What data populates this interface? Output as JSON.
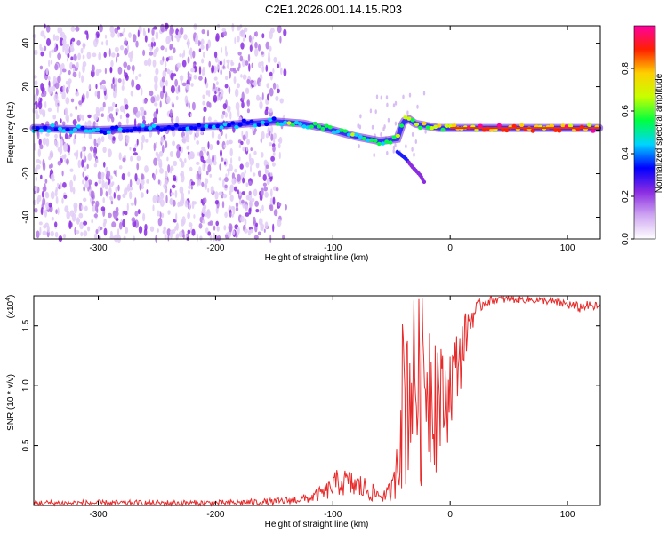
{
  "title": "C2E1.2026.001.14.15.R03",
  "chart_data": [
    {
      "type": "heatmap",
      "title": "C2E1.2026.001.14.15.R03",
      "xlabel": "Height of straight line (km)",
      "ylabel": "Frequency (Hz)",
      "xlim": [
        -355,
        128
      ],
      "ylim": [
        -50,
        48
      ],
      "xticks": [
        -300,
        -200,
        -100,
        0,
        100
      ],
      "yticks": [
        -40,
        -20,
        0,
        20,
        40
      ],
      "colorbar": {
        "label": "Normalized spectral amplitude",
        "range": [
          0,
          1
        ],
        "ticks": [
          0.0,
          0.2,
          0.4,
          0.6,
          0.8
        ],
        "colors": [
          "#ffffff",
          "#cfa6f2",
          "#8a2be2",
          "#0000ff",
          "#00d5ff",
          "#00ff40",
          "#c8ff00",
          "#ffd000",
          "#ff2000",
          "#ff00a0"
        ]
      },
      "ridge": {
        "x": [
          -355,
          -300,
          -250,
          -200,
          -150,
          -125,
          -100,
          -80,
          -60,
          -45,
          -40,
          -35,
          -30,
          -20,
          -10,
          0,
          50,
          100,
          128
        ],
        "freq_hz": [
          1,
          0,
          1,
          2,
          4,
          3,
          0,
          -3,
          -5,
          -4,
          4,
          5,
          3,
          2,
          1,
          1,
          1,
          1,
          1
        ]
      },
      "branch": {
        "x": [
          -45,
          -38,
          -32,
          -25,
          -22
        ],
        "freq_hz": [
          -10,
          -13,
          -17,
          -21,
          -24
        ]
      }
    },
    {
      "type": "line",
      "title": "",
      "xlabel": "Height of straight line (km)",
      "ylabel": "SNR (10 * v/v)",
      "y_scale_label": "(x10",
      "y_scale_exponent": "4",
      "xlim": [
        -355,
        128
      ],
      "ylim": [
        0,
        1.75
      ],
      "xticks": [
        -300,
        -200,
        -100,
        0,
        100
      ],
      "yticks": [
        0.5,
        1.0,
        1.5
      ],
      "series": [
        {
          "name": "SNR",
          "color": "#e82a2a",
          "x": [
            -355,
            -200,
            -150,
            -120,
            -105,
            -95,
            -85,
            -75,
            -65,
            -55,
            -48,
            -40,
            -35,
            -30,
            -25,
            -20,
            -15,
            -10,
            -5,
            0,
            5,
            10,
            15,
            20,
            25,
            30,
            40,
            60,
            80,
            100,
            110,
            115,
            120,
            128
          ],
          "y": [
            0.02,
            0.02,
            0.03,
            0.06,
            0.12,
            0.2,
            0.18,
            0.15,
            0.1,
            0.08,
            0.15,
            0.6,
            1.0,
            1.3,
            1.1,
            1.2,
            1.0,
            0.8,
            0.7,
            0.9,
            1.1,
            1.3,
            1.5,
            1.6,
            1.66,
            1.7,
            1.72,
            1.72,
            1.71,
            1.68,
            1.65,
            1.67,
            1.66,
            1.66
          ],
          "y_min": [
            0.0,
            0.0,
            0.0,
            0.02,
            0.05,
            0.08,
            0.06,
            0.05,
            0.04,
            0.03,
            0.05,
            0.05,
            0.08,
            0.2,
            0.1,
            0.3,
            0.2,
            0.3,
            0.4,
            0.6,
            0.8,
            1.0,
            1.3,
            1.5,
            1.6,
            1.66,
            1.68,
            1.69,
            1.68,
            1.64,
            1.61,
            1.63,
            1.62,
            1.62
          ],
          "y_max": [
            0.05,
            0.05,
            0.06,
            0.1,
            0.2,
            0.32,
            0.3,
            0.28,
            0.18,
            0.14,
            0.3,
            1.7,
            1.75,
            1.75,
            1.75,
            1.75,
            1.7,
            1.5,
            1.2,
            1.35,
            1.45,
            1.55,
            1.65,
            1.7,
            1.72,
            1.74,
            1.75,
            1.75,
            1.74,
            1.72,
            1.7,
            1.71,
            1.7,
            1.7
          ]
        }
      ]
    }
  ]
}
